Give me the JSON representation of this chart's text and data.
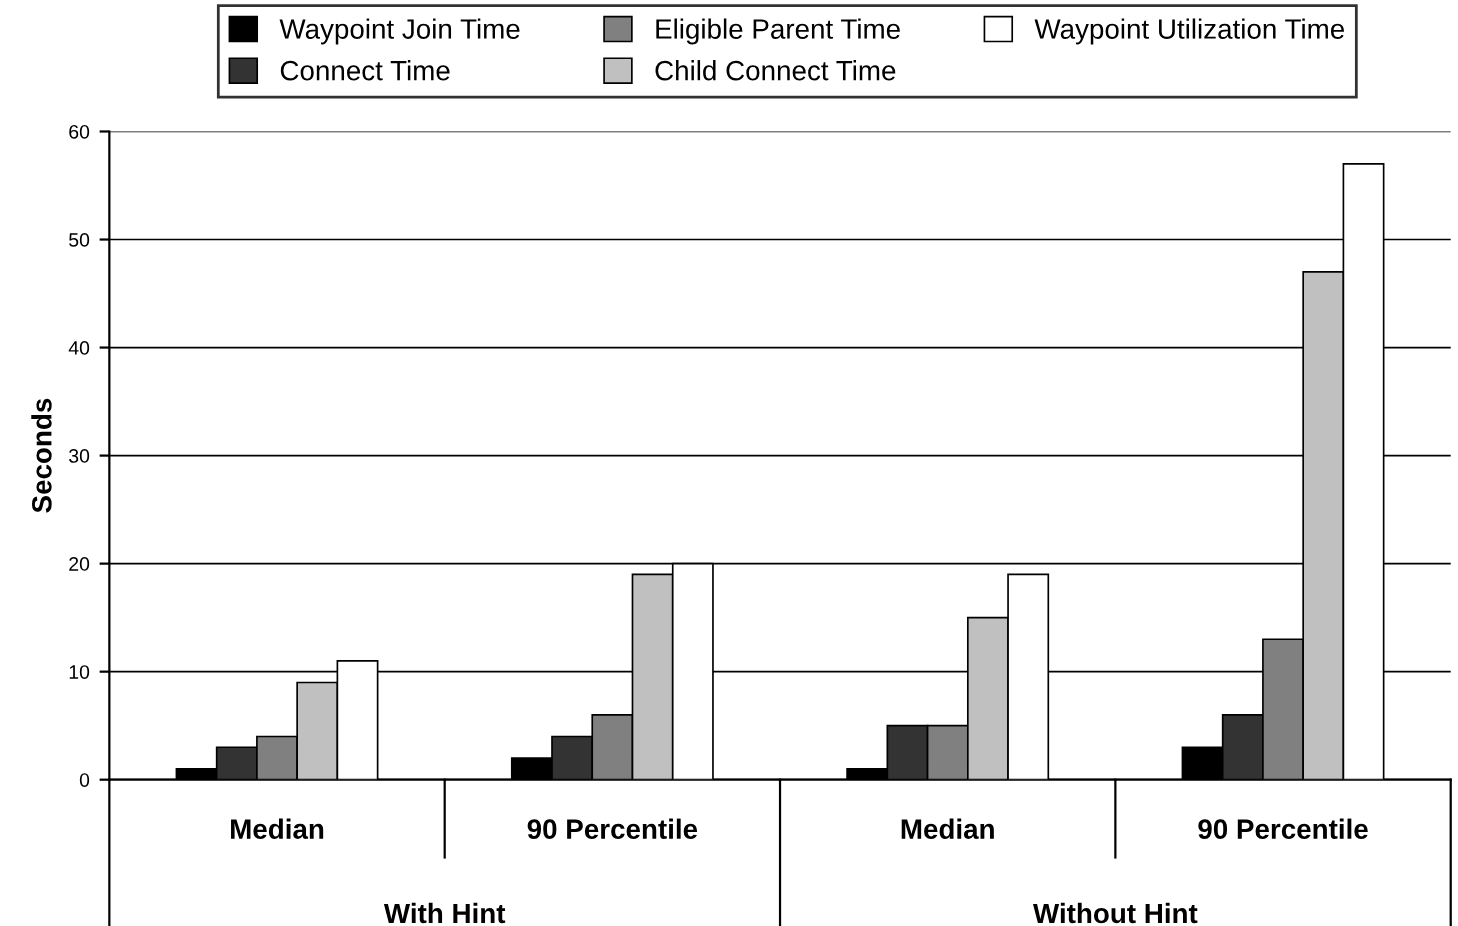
{
  "chart_data": {
    "type": "bar",
    "ylabel": "Seconds",
    "categories": [
      "Median",
      "90 Percentile",
      "Median",
      "90 Percentile"
    ],
    "annotations": [
      "With Hint",
      "Without Hint"
    ],
    "series": [
      {
        "name": "Waypoint Join Time",
        "color": "#000000",
        "values": [
          1,
          2,
          1,
          3
        ]
      },
      {
        "name": "Connect Time",
        "color": "#333333",
        "values": [
          3,
          4,
          5,
          6
        ]
      },
      {
        "name": "Eligible Parent Time",
        "color": "#808080",
        "values": [
          4,
          6,
          5,
          13
        ]
      },
      {
        "name": "Child Connect Time",
        "color": "#c0c0c0",
        "values": [
          9,
          19,
          15,
          47
        ]
      },
      {
        "name": "Waypoint Utilization Time",
        "color": "#ffffff",
        "values": [
          11,
          20,
          19,
          57
        ]
      }
    ],
    "ylim": [
      0,
      60
    ],
    "yticks": [
      0,
      10,
      20,
      30,
      40,
      50,
      60
    ],
    "grid": "y",
    "legend": "top"
  }
}
